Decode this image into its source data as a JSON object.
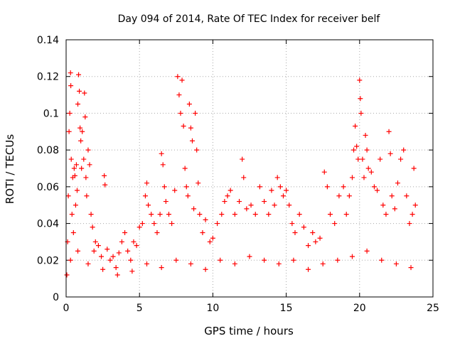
{
  "chart_data": {
    "type": "scatter",
    "title": "Day 094 of 2014, Rate Of TEC Index for receiver belf",
    "xlabel": "GPS time / hours",
    "ylabel": "ROTI / TECUs",
    "xlim": [
      0,
      25
    ],
    "ylim": [
      0,
      0.14
    ],
    "xticks": [
      0,
      5,
      10,
      15,
      20,
      25
    ],
    "yticks": [
      0,
      0.02,
      0.04,
      0.06,
      0.08,
      0.1,
      0.12,
      0.14
    ],
    "xtick_labels": [
      "0",
      "5",
      "10",
      "15",
      "20",
      "25"
    ],
    "ytick_labels": [
      "0",
      "0.02",
      "0.04",
      "0.06",
      "0.08",
      "0.1",
      "0.12",
      "0.14"
    ],
    "grid": true,
    "marker": "+",
    "color": "#ff0000",
    "series": [
      {
        "name": "ROTI",
        "points": [
          [
            0.05,
            0.012
          ],
          [
            0.1,
            0.03
          ],
          [
            0.15,
            0.055
          ],
          [
            0.2,
            0.09
          ],
          [
            0.25,
            0.1
          ],
          [
            0.3,
            0.122
          ],
          [
            0.32,
            0.115
          ],
          [
            0.35,
            0.075
          ],
          [
            0.4,
            0.045
          ],
          [
            0.45,
            0.065
          ],
          [
            0.5,
            0.035
          ],
          [
            0.55,
            0.07
          ],
          [
            0.6,
            0.066
          ],
          [
            0.65,
            0.05
          ],
          [
            0.7,
            0.072
          ],
          [
            0.75,
            0.058
          ],
          [
            0.8,
            0.105
          ],
          [
            0.85,
            0.121
          ],
          [
            0.9,
            0.112
          ],
          [
            0.95,
            0.092
          ],
          [
            1.0,
            0.085
          ],
          [
            1.05,
            0.07
          ],
          [
            1.1,
            0.09
          ],
          [
            1.2,
            0.075
          ],
          [
            1.25,
            0.111
          ],
          [
            1.3,
            0.098
          ],
          [
            1.35,
            0.065
          ],
          [
            1.4,
            0.055
          ],
          [
            1.5,
            0.08
          ],
          [
            1.6,
            0.072
          ],
          [
            1.7,
            0.045
          ],
          [
            1.8,
            0.038
          ],
          [
            1.9,
            0.025
          ],
          [
            2.0,
            0.03
          ],
          [
            2.2,
            0.028
          ],
          [
            2.4,
            0.022
          ],
          [
            2.6,
            0.066
          ],
          [
            2.65,
            0.061
          ],
          [
            2.8,
            0.026
          ],
          [
            3.0,
            0.02
          ],
          [
            3.2,
            0.022
          ],
          [
            3.4,
            0.016
          ],
          [
            3.6,
            0.024
          ],
          [
            3.8,
            0.03
          ],
          [
            4.0,
            0.035
          ],
          [
            4.2,
            0.025
          ],
          [
            4.4,
            0.02
          ],
          [
            4.6,
            0.03
          ],
          [
            4.8,
            0.028
          ],
          [
            5.0,
            0.038
          ],
          [
            5.2,
            0.04
          ],
          [
            5.4,
            0.055
          ],
          [
            5.5,
            0.062
          ],
          [
            5.6,
            0.05
          ],
          [
            5.8,
            0.045
          ],
          [
            6.0,
            0.04
          ],
          [
            6.2,
            0.035
          ],
          [
            6.4,
            0.045
          ],
          [
            6.5,
            0.078
          ],
          [
            6.6,
            0.072
          ],
          [
            6.7,
            0.06
          ],
          [
            6.8,
            0.052
          ],
          [
            7.0,
            0.045
          ],
          [
            7.2,
            0.04
          ],
          [
            7.4,
            0.058
          ],
          [
            7.6,
            0.12
          ],
          [
            7.7,
            0.11
          ],
          [
            7.8,
            0.1
          ],
          [
            7.9,
            0.118
          ],
          [
            8.0,
            0.093
          ],
          [
            8.1,
            0.07
          ],
          [
            8.2,
            0.06
          ],
          [
            8.3,
            0.055
          ],
          [
            8.4,
            0.105
          ],
          [
            8.5,
            0.092
          ],
          [
            8.6,
            0.085
          ],
          [
            8.7,
            0.048
          ],
          [
            8.8,
            0.1
          ],
          [
            8.9,
            0.08
          ],
          [
            9.0,
            0.062
          ],
          [
            9.1,
            0.045
          ],
          [
            9.3,
            0.035
          ],
          [
            9.5,
            0.042
          ],
          [
            9.8,
            0.03
          ],
          [
            10.0,
            0.032
          ],
          [
            10.3,
            0.04
          ],
          [
            10.6,
            0.045
          ],
          [
            10.8,
            0.052
          ],
          [
            11.0,
            0.055
          ],
          [
            11.2,
            0.058
          ],
          [
            11.5,
            0.045
          ],
          [
            11.8,
            0.052
          ],
          [
            12.0,
            0.075
          ],
          [
            12.1,
            0.065
          ],
          [
            12.3,
            0.048
          ],
          [
            12.6,
            0.05
          ],
          [
            12.9,
            0.045
          ],
          [
            13.2,
            0.06
          ],
          [
            13.5,
            0.052
          ],
          [
            13.8,
            0.045
          ],
          [
            14.0,
            0.058
          ],
          [
            14.2,
            0.05
          ],
          [
            14.4,
            0.065
          ],
          [
            14.6,
            0.06
          ],
          [
            14.8,
            0.055
          ],
          [
            15.0,
            0.058
          ],
          [
            15.2,
            0.05
          ],
          [
            15.4,
            0.04
          ],
          [
            15.6,
            0.035
          ],
          [
            15.9,
            0.045
          ],
          [
            16.2,
            0.038
          ],
          [
            16.5,
            0.028
          ],
          [
            16.8,
            0.035
          ],
          [
            17.0,
            0.03
          ],
          [
            17.3,
            0.032
          ],
          [
            17.6,
            0.068
          ],
          [
            17.8,
            0.06
          ],
          [
            18.0,
            0.045
          ],
          [
            18.3,
            0.04
          ],
          [
            18.6,
            0.055
          ],
          [
            18.9,
            0.06
          ],
          [
            19.1,
            0.045
          ],
          [
            19.3,
            0.055
          ],
          [
            19.5,
            0.065
          ],
          [
            19.6,
            0.08
          ],
          [
            19.7,
            0.093
          ],
          [
            19.8,
            0.082
          ],
          [
            19.9,
            0.075
          ],
          [
            20.0,
            0.118
          ],
          [
            20.05,
            0.108
          ],
          [
            20.1,
            0.1
          ],
          [
            20.2,
            0.075
          ],
          [
            20.3,
            0.065
          ],
          [
            20.4,
            0.088
          ],
          [
            20.5,
            0.08
          ],
          [
            20.6,
            0.07
          ],
          [
            20.8,
            0.068
          ],
          [
            21.0,
            0.06
          ],
          [
            21.2,
            0.058
          ],
          [
            21.4,
            0.075
          ],
          [
            21.6,
            0.05
          ],
          [
            21.8,
            0.045
          ],
          [
            22.0,
            0.09
          ],
          [
            22.1,
            0.078
          ],
          [
            22.2,
            0.055
          ],
          [
            22.4,
            0.048
          ],
          [
            22.6,
            0.062
          ],
          [
            22.8,
            0.075
          ],
          [
            23.0,
            0.08
          ],
          [
            23.2,
            0.055
          ],
          [
            23.4,
            0.04
          ],
          [
            23.6,
            0.045
          ],
          [
            23.7,
            0.07
          ],
          [
            23.8,
            0.05
          ],
          [
            0.3,
            0.02
          ],
          [
            0.8,
            0.025
          ],
          [
            1.5,
            0.018
          ],
          [
            2.5,
            0.015
          ],
          [
            3.5,
            0.012
          ],
          [
            4.5,
            0.014
          ],
          [
            5.5,
            0.018
          ],
          [
            6.5,
            0.016
          ],
          [
            7.5,
            0.02
          ],
          [
            8.5,
            0.018
          ],
          [
            9.5,
            0.015
          ],
          [
            10.5,
            0.02
          ],
          [
            11.5,
            0.018
          ],
          [
            12.5,
            0.022
          ],
          [
            13.5,
            0.02
          ],
          [
            14.5,
            0.018
          ],
          [
            15.5,
            0.02
          ],
          [
            16.5,
            0.015
          ],
          [
            17.5,
            0.018
          ],
          [
            18.5,
            0.02
          ],
          [
            19.5,
            0.022
          ],
          [
            20.5,
            0.025
          ],
          [
            21.5,
            0.02
          ],
          [
            22.5,
            0.018
          ],
          [
            23.5,
            0.016
          ]
        ]
      }
    ]
  }
}
